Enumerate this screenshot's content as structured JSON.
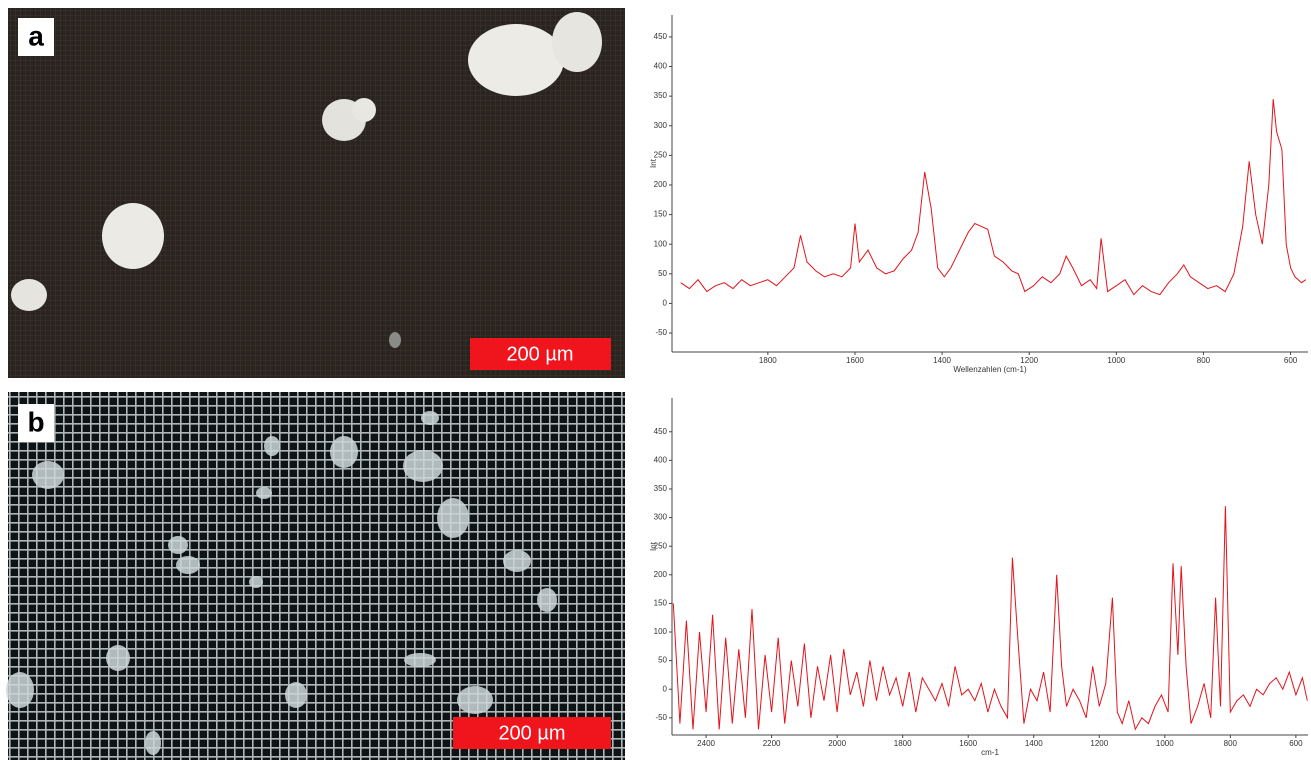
{
  "panels": [
    {
      "label": "a",
      "scale_bar": "200 µm"
    },
    {
      "label": "b",
      "scale_bar": "200 µm"
    }
  ],
  "chart_data": [
    {
      "type": "line",
      "x_label": "Wellenzahlen (cm-1)",
      "y_label": "Int",
      "xlim": [
        2020,
        560
      ],
      "ylim": [
        -82,
        487
      ],
      "xticks": [
        1800,
        1600,
        1400,
        1200,
        1000,
        800,
        600
      ],
      "yticks": [
        -50,
        0,
        50,
        100,
        150,
        200,
        250,
        300,
        350,
        400,
        450
      ],
      "x": [
        2000,
        1980,
        1960,
        1940,
        1920,
        1900,
        1880,
        1860,
        1840,
        1820,
        1800,
        1780,
        1760,
        1740,
        1725,
        1710,
        1690,
        1670,
        1650,
        1630,
        1610,
        1600,
        1590,
        1570,
        1550,
        1530,
        1510,
        1490,
        1470,
        1455,
        1440,
        1425,
        1410,
        1395,
        1380,
        1360,
        1340,
        1325,
        1310,
        1295,
        1280,
        1260,
        1240,
        1225,
        1210,
        1190,
        1170,
        1150,
        1130,
        1115,
        1100,
        1080,
        1060,
        1045,
        1035,
        1020,
        1000,
        980,
        960,
        940,
        920,
        900,
        880,
        860,
        845,
        830,
        810,
        790,
        770,
        750,
        730,
        710,
        695,
        680,
        665,
        650,
        640,
        632,
        620,
        610,
        600,
        590,
        575,
        565
      ],
      "series": [
        {
          "color": "#e3141c",
          "values": [
            35,
            25,
            40,
            20,
            30,
            35,
            25,
            40,
            30,
            35,
            40,
            30,
            45,
            60,
            115,
            70,
            55,
            45,
            50,
            45,
            60,
            135,
            70,
            90,
            60,
            50,
            55,
            75,
            90,
            120,
            222,
            160,
            60,
            45,
            60,
            90,
            120,
            135,
            130,
            125,
            80,
            70,
            55,
            50,
            20,
            30,
            45,
            35,
            50,
            80,
            60,
            30,
            40,
            25,
            110,
            20,
            30,
            40,
            15,
            30,
            20,
            15,
            35,
            50,
            65,
            45,
            35,
            25,
            30,
            20,
            50,
            130,
            240,
            150,
            100,
            200,
            345,
            290,
            260,
            100,
            60,
            45,
            35,
            40
          ]
        }
      ]
    },
    {
      "type": "line",
      "x_label": "cm-1",
      "y_label": "Int",
      "xlim": [
        2504,
        563
      ],
      "ylim": [
        -80,
        509
      ],
      "xticks": [
        2400,
        2200,
        2000,
        1800,
        1600,
        1400,
        1200,
        1000,
        800,
        600
      ],
      "yticks": [
        -50,
        0,
        50,
        100,
        150,
        200,
        250,
        300,
        350,
        400,
        450
      ],
      "x": [
        2500,
        2480,
        2460,
        2440,
        2420,
        2400,
        2380,
        2360,
        2340,
        2320,
        2300,
        2280,
        2260,
        2240,
        2220,
        2200,
        2180,
        2160,
        2140,
        2120,
        2100,
        2080,
        2060,
        2040,
        2020,
        2000,
        1980,
        1960,
        1940,
        1920,
        1900,
        1880,
        1860,
        1840,
        1820,
        1800,
        1780,
        1760,
        1740,
        1720,
        1700,
        1680,
        1660,
        1640,
        1620,
        1600,
        1580,
        1560,
        1540,
        1520,
        1500,
        1480,
        1465,
        1450,
        1430,
        1410,
        1390,
        1370,
        1350,
        1330,
        1315,
        1300,
        1280,
        1260,
        1240,
        1220,
        1200,
        1180,
        1160,
        1145,
        1130,
        1110,
        1090,
        1070,
        1050,
        1030,
        1010,
        990,
        975,
        960,
        950,
        935,
        920,
        900,
        880,
        860,
        845,
        830,
        815,
        800,
        780,
        760,
        740,
        720,
        700,
        680,
        660,
        640,
        620,
        600,
        580,
        565
      ],
      "series": [
        {
          "color": "#e3141c",
          "values": [
            150,
            -60,
            120,
            -70,
            100,
            -40,
            130,
            -70,
            90,
            -60,
            70,
            -50,
            140,
            -70,
            60,
            -40,
            90,
            -60,
            50,
            -30,
            80,
            -50,
            40,
            -20,
            60,
            -40,
            70,
            -10,
            30,
            -30,
            50,
            -20,
            40,
            -10,
            20,
            -30,
            30,
            -40,
            20,
            0,
            -20,
            10,
            -30,
            40,
            -10,
            0,
            -20,
            10,
            -40,
            0,
            -30,
            -50,
            230,
            100,
            -60,
            0,
            -20,
            30,
            -40,
            200,
            40,
            -30,
            0,
            -20,
            -50,
            40,
            -30,
            10,
            160,
            -40,
            -60,
            -20,
            -70,
            -50,
            -60,
            -30,
            -10,
            -40,
            220,
            60,
            215,
            40,
            -60,
            -30,
            10,
            -50,
            160,
            -30,
            320,
            -40,
            -20,
            -10,
            -30,
            0,
            -10,
            10,
            20,
            0,
            30,
            -10,
            20,
            -20
          ]
        }
      ]
    }
  ]
}
